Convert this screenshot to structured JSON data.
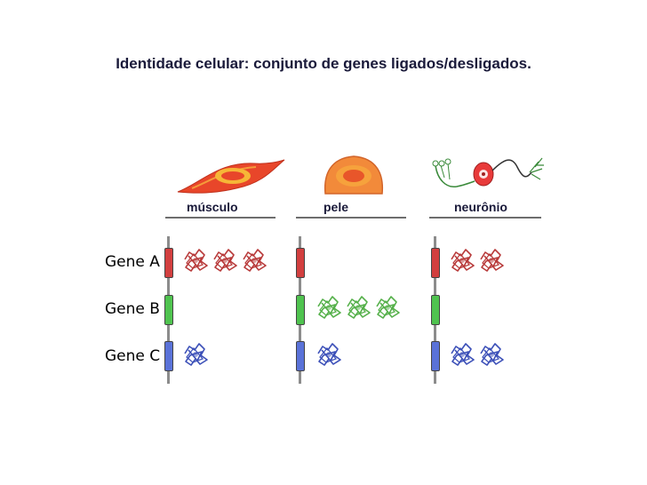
{
  "title": "Identidade celular: conjunto de genes ligados/desligados.",
  "columns": [
    {
      "label": "músculo",
      "icon": "muscle-cell-icon"
    },
    {
      "label": "pele",
      "icon": "skin-cell-icon"
    },
    {
      "label": "neurônio",
      "icon": "neuron-icon"
    }
  ],
  "genes": [
    {
      "label": "Gene A",
      "color": "#d23f3f"
    },
    {
      "label": "Gene B",
      "color": "#4fc34f"
    },
    {
      "label": "Gene C",
      "color": "#5a72d8"
    }
  ],
  "protein_counts": {
    "musculo": {
      "gene_a": 3,
      "gene_b": 0,
      "gene_c": 1
    },
    "pele": {
      "gene_a": 0,
      "gene_b": 3,
      "gene_c": 1
    },
    "neuronio": {
      "gene_a": 2,
      "gene_b": 0,
      "gene_c": 2
    }
  },
  "colors": {
    "protein_a": "#b83a3a",
    "protein_b": "#55b04a",
    "protein_c": "#3c50b8",
    "title": "#1a1a3a"
  }
}
